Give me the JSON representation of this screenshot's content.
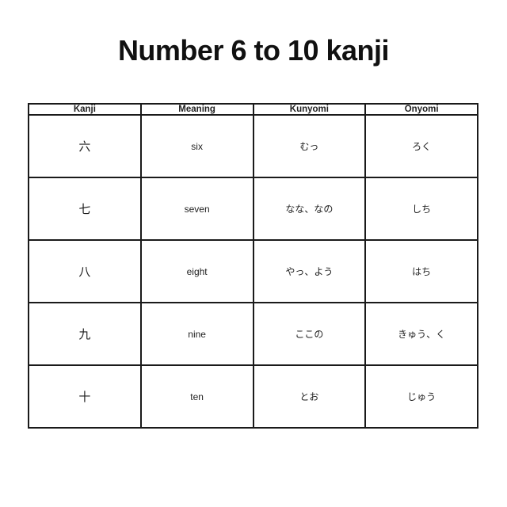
{
  "title": "Number 6 to 10 kanji",
  "colors": {
    "background": "#ffffff",
    "border": "#1a1a1a",
    "text": "#1f1f1f",
    "title_text": "#111111"
  },
  "table": {
    "headers": [
      "Kanji",
      "Meaning",
      "Kunyomi",
      "Onyomi"
    ],
    "rows": [
      {
        "kanji": "六",
        "meaning": "six",
        "kunyomi": "むっ",
        "onyomi": "ろく"
      },
      {
        "kanji": "七",
        "meaning": "seven",
        "kunyomi": "なな、なの",
        "onyomi": "しち"
      },
      {
        "kanji": "八",
        "meaning": "eight",
        "kunyomi": "やっ、よう",
        "onyomi": "はち"
      },
      {
        "kanji": "九",
        "meaning": "nine",
        "kunyomi": "ここの",
        "onyomi": "きゅう、く"
      },
      {
        "kanji": "十",
        "meaning": "ten",
        "kunyomi": "とお",
        "onyomi": "じゅう"
      }
    ]
  }
}
